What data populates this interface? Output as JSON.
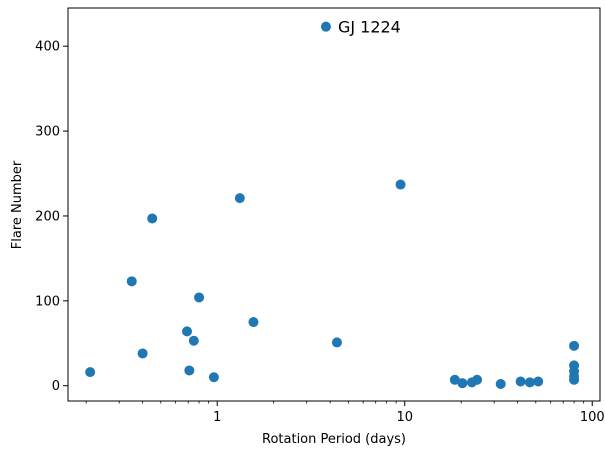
{
  "chart_data": {
    "type": "scatter",
    "xlabel": "Rotation Period (days)",
    "ylabel": "Flare Number",
    "xscale": "log",
    "xlim": [
      0.16,
      110
    ],
    "ylim": [
      -18,
      445
    ],
    "x_ticks": [
      {
        "value": 1,
        "label": "1"
      },
      {
        "value": 10,
        "label": "10"
      },
      {
        "value": 100,
        "label": "100"
      }
    ],
    "y_ticks": [
      {
        "value": 0,
        "label": "0"
      },
      {
        "value": 100,
        "label": "100"
      },
      {
        "value": 200,
        "label": "200"
      },
      {
        "value": 300,
        "label": "300"
      },
      {
        "value": 400,
        "label": "400"
      }
    ],
    "grid": false,
    "marker_color": "#1f77b4",
    "points": [
      {
        "x": 0.21,
        "y": 16
      },
      {
        "x": 0.35,
        "y": 123
      },
      {
        "x": 0.4,
        "y": 38
      },
      {
        "x": 0.45,
        "y": 197
      },
      {
        "x": 0.69,
        "y": 64
      },
      {
        "x": 0.71,
        "y": 18
      },
      {
        "x": 0.75,
        "y": 53
      },
      {
        "x": 0.8,
        "y": 104
      },
      {
        "x": 0.96,
        "y": 10
      },
      {
        "x": 1.32,
        "y": 221
      },
      {
        "x": 1.56,
        "y": 75
      },
      {
        "x": 3.8,
        "y": 423
      },
      {
        "x": 4.35,
        "y": 51
      },
      {
        "x": 9.5,
        "y": 237
      },
      {
        "x": 18.5,
        "y": 7
      },
      {
        "x": 20.3,
        "y": 3
      },
      {
        "x": 22.8,
        "y": 4
      },
      {
        "x": 24.3,
        "y": 7
      },
      {
        "x": 32.5,
        "y": 2
      },
      {
        "x": 41.5,
        "y": 5
      },
      {
        "x": 46.5,
        "y": 4
      },
      {
        "x": 51.5,
        "y": 5
      },
      {
        "x": 80,
        "y": 47
      },
      {
        "x": 80,
        "y": 24
      },
      {
        "x": 80,
        "y": 17
      },
      {
        "x": 80,
        "y": 11
      },
      {
        "x": 80,
        "y": 7
      }
    ],
    "annotations": [
      {
        "text": "GJ 1224",
        "point_index": 11
      }
    ]
  }
}
